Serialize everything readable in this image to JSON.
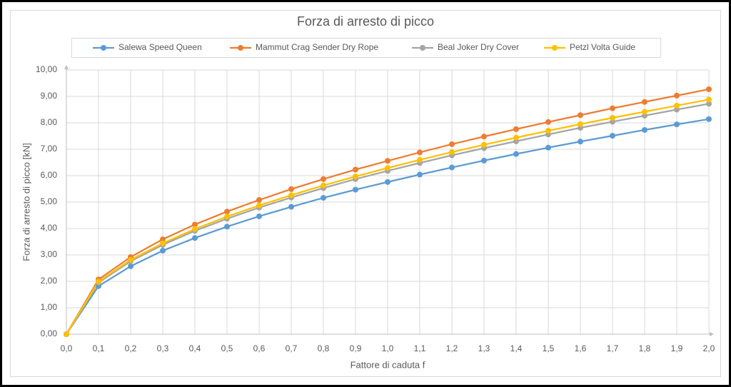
{
  "chart_data": {
    "type": "line",
    "title": "Forza di arresto di picco",
    "x_label": "Fattore di caduta f",
    "y_label": "Forza di arresto di picco [kN]",
    "x": [
      0,
      0.1,
      0.2,
      0.3,
      0.4,
      0.5,
      0.6,
      0.7,
      0.8,
      0.9,
      1.0,
      1.1,
      1.2,
      1.3,
      1.4,
      1.5,
      1.6,
      1.7,
      1.8,
      1.9,
      2.0
    ],
    "series": [
      {
        "name": "Salewa Speed Queen",
        "color": "#5b9bd5",
        "values": [
          0,
          1.82,
          2.57,
          3.16,
          3.64,
          4.07,
          4.46,
          4.82,
          5.16,
          5.47,
          5.76,
          6.04,
          6.31,
          6.57,
          6.82,
          7.06,
          7.29,
          7.51,
          7.73,
          7.94,
          8.14
        ]
      },
      {
        "name": "Mammut Crag Sender Dry Rope",
        "color": "#ed7d31",
        "values": [
          0,
          2.07,
          2.92,
          3.59,
          4.15,
          4.64,
          5.08,
          5.49,
          5.87,
          6.23,
          6.56,
          6.88,
          7.19,
          7.48,
          7.76,
          8.03,
          8.29,
          8.55,
          8.79,
          9.03,
          9.27
        ]
      },
      {
        "name": "Beal Joker Dry Cover",
        "color": "#a5a5a5",
        "values": [
          0,
          1.95,
          2.76,
          3.38,
          3.91,
          4.37,
          4.79,
          5.17,
          5.53,
          5.87,
          6.18,
          6.48,
          6.77,
          7.04,
          7.3,
          7.56,
          7.81,
          8.04,
          8.27,
          8.5,
          8.72
        ]
      },
      {
        "name": "Petzl Volta Guide",
        "color": "#ffc000",
        "values": [
          0,
          1.99,
          2.81,
          3.44,
          3.98,
          4.45,
          4.87,
          5.26,
          5.63,
          5.97,
          6.29,
          6.6,
          6.89,
          7.17,
          7.44,
          7.7,
          7.95,
          8.19,
          8.42,
          8.65,
          8.88
        ]
      }
    ],
    "xlim": [
      0,
      2.0
    ],
    "xticks": [
      {
        "value": 0,
        "label": "0,0"
      },
      {
        "value": 0.1,
        "label": "0,1"
      },
      {
        "value": 0.2,
        "label": "0,2"
      },
      {
        "value": 0.3,
        "label": "0,3"
      },
      {
        "value": 0.4,
        "label": "0,4"
      },
      {
        "value": 0.5,
        "label": "0,5"
      },
      {
        "value": 0.6,
        "label": "0,6"
      },
      {
        "value": 0.7,
        "label": "0,7"
      },
      {
        "value": 0.8,
        "label": "0,8"
      },
      {
        "value": 0.9,
        "label": "0,9"
      },
      {
        "value": 1.0,
        "label": "1,0"
      },
      {
        "value": 1.1,
        "label": "1,1"
      },
      {
        "value": 1.2,
        "label": "1,2"
      },
      {
        "value": 1.3,
        "label": "1,3"
      },
      {
        "value": 1.4,
        "label": "1,4"
      },
      {
        "value": 1.5,
        "label": "1,5"
      },
      {
        "value": 1.6,
        "label": "1,6"
      },
      {
        "value": 1.7,
        "label": "1,7"
      },
      {
        "value": 1.8,
        "label": "1,8"
      },
      {
        "value": 1.9,
        "label": "1,9"
      },
      {
        "value": 2.0,
        "label": "2,0"
      }
    ],
    "ylim": [
      0,
      10
    ],
    "yticks": [
      {
        "value": 0,
        "label": "0,00"
      },
      {
        "value": 1,
        "label": "1,00"
      },
      {
        "value": 2,
        "label": "2,00"
      },
      {
        "value": 3,
        "label": "3,00"
      },
      {
        "value": 4,
        "label": "4,00"
      },
      {
        "value": 5,
        "label": "5,00"
      },
      {
        "value": 6,
        "label": "6,00"
      },
      {
        "value": 7,
        "label": "7,00"
      },
      {
        "value": 8,
        "label": "8,00"
      },
      {
        "value": 9,
        "label": "9,00"
      },
      {
        "value": 10,
        "label": "10,00"
      }
    ],
    "grid": true,
    "legend": "top"
  }
}
